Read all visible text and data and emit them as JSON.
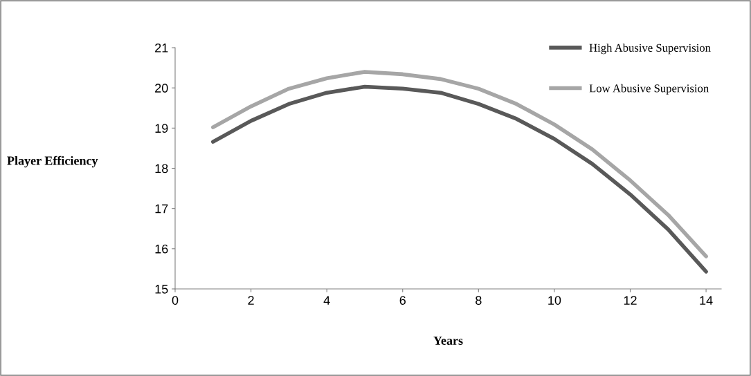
{
  "chart_data": {
    "type": "line",
    "xlabel": "Years",
    "ylabel": "Player Efficiency",
    "x": [
      1,
      2,
      3,
      4,
      5,
      6,
      7,
      8,
      9,
      10,
      11,
      12,
      13,
      14
    ],
    "series": [
      {
        "name": "High Abusive Supervision",
        "color": "#595959",
        "values": [
          18.66,
          19.18,
          19.6,
          19.88,
          20.03,
          19.98,
          19.88,
          19.6,
          19.23,
          18.73,
          18.11,
          17.35,
          16.48,
          15.43
        ]
      },
      {
        "name": "Low Abusive Supervision",
        "color": "#a6a6a6",
        "values": [
          19.02,
          19.54,
          19.98,
          20.24,
          20.4,
          20.34,
          20.22,
          19.98,
          19.6,
          19.09,
          18.47,
          17.7,
          16.84,
          15.81
        ]
      }
    ],
    "xlim": [
      0,
      14.4
    ],
    "xticks": [
      0,
      2,
      4,
      6,
      8,
      10,
      12,
      14
    ],
    "ylim": [
      15,
      21
    ],
    "yticks": [
      15,
      16,
      17,
      18,
      19,
      20,
      21
    ],
    "grid": false,
    "legend": "top right",
    "marker": "none",
    "line_style": "solid"
  }
}
